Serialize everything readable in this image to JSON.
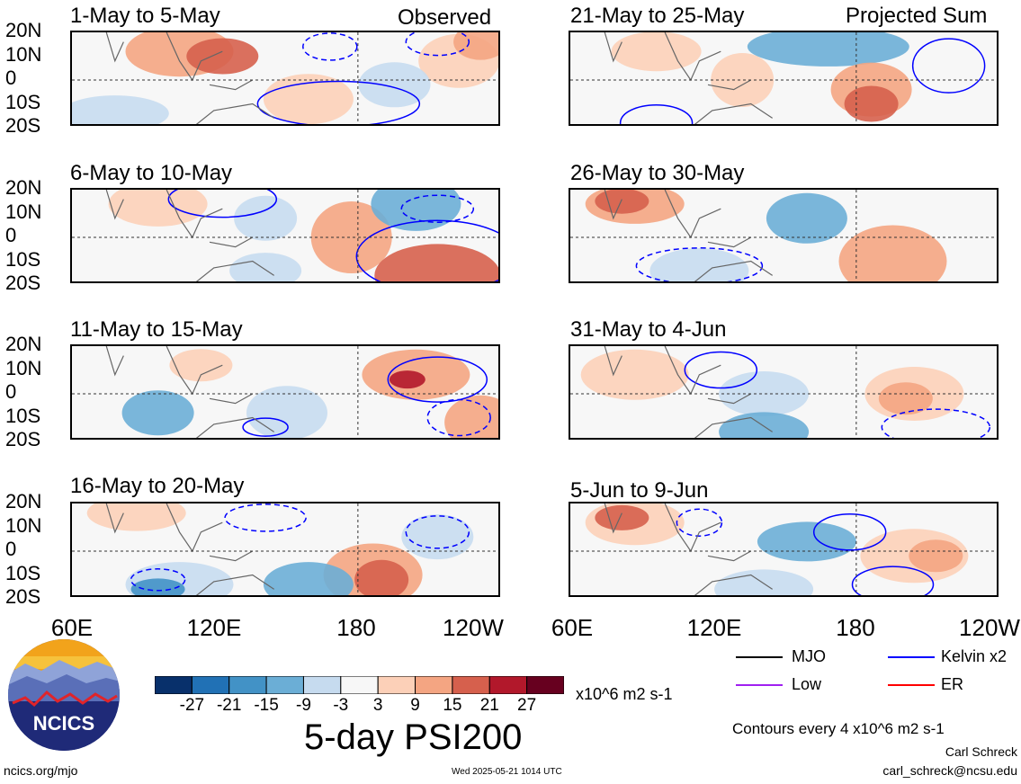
{
  "panels": [
    {
      "date_range": "1-May to 5-May",
      "tag": "Observed"
    },
    {
      "date_range": "6-May to 10-May",
      "tag": ""
    },
    {
      "date_range": "11-May to 15-May",
      "tag": ""
    },
    {
      "date_range": "16-May to 20-May",
      "tag": ""
    },
    {
      "date_range": "21-May to 25-May",
      "tag": "Projected Sum"
    },
    {
      "date_range": "26-May to 30-May",
      "tag": ""
    },
    {
      "date_range": "31-May to 4-Jun",
      "tag": ""
    },
    {
      "date_range": "5-Jun to 9-Jun",
      "tag": ""
    }
  ],
  "lat_labels": [
    "20N",
    "10N",
    "0",
    "10S",
    "20S"
  ],
  "lon_labels": [
    "60E",
    "120E",
    "180",
    "120W"
  ],
  "colorbar": {
    "ticks": [
      "-27",
      "-21",
      "-15",
      "-9",
      "-3",
      "3",
      "9",
      "15",
      "21",
      "27"
    ],
    "colors": [
      "#08306b",
      "#2171b5",
      "#4292c6",
      "#6baed6",
      "#c6dbef",
      "#f7f7f7",
      "#fcd0b8",
      "#f4a582",
      "#d6604d",
      "#b2182b",
      "#67001f"
    ],
    "units": "x10^6 m2 s-1"
  },
  "title": "5-day PSI200",
  "legend": {
    "items": [
      {
        "label": "MJO",
        "color": "#000000"
      },
      {
        "label": "Kelvin x2",
        "color": "#0000ff"
      },
      {
        "label": "Low",
        "color": "#a020f0"
      },
      {
        "label": "ER",
        "color": "#ff0000"
      }
    ],
    "contour_note": "Contours every 4 x10^6 m2 s-1"
  },
  "logo": {
    "text": "NCICS"
  },
  "footer": {
    "site": "ncics.org/mjo",
    "timestamp": "Wed 2025-05-21 1014 UTC",
    "author": "Carl Schreck",
    "email": "carl_schreck@ncsu.edu"
  }
}
